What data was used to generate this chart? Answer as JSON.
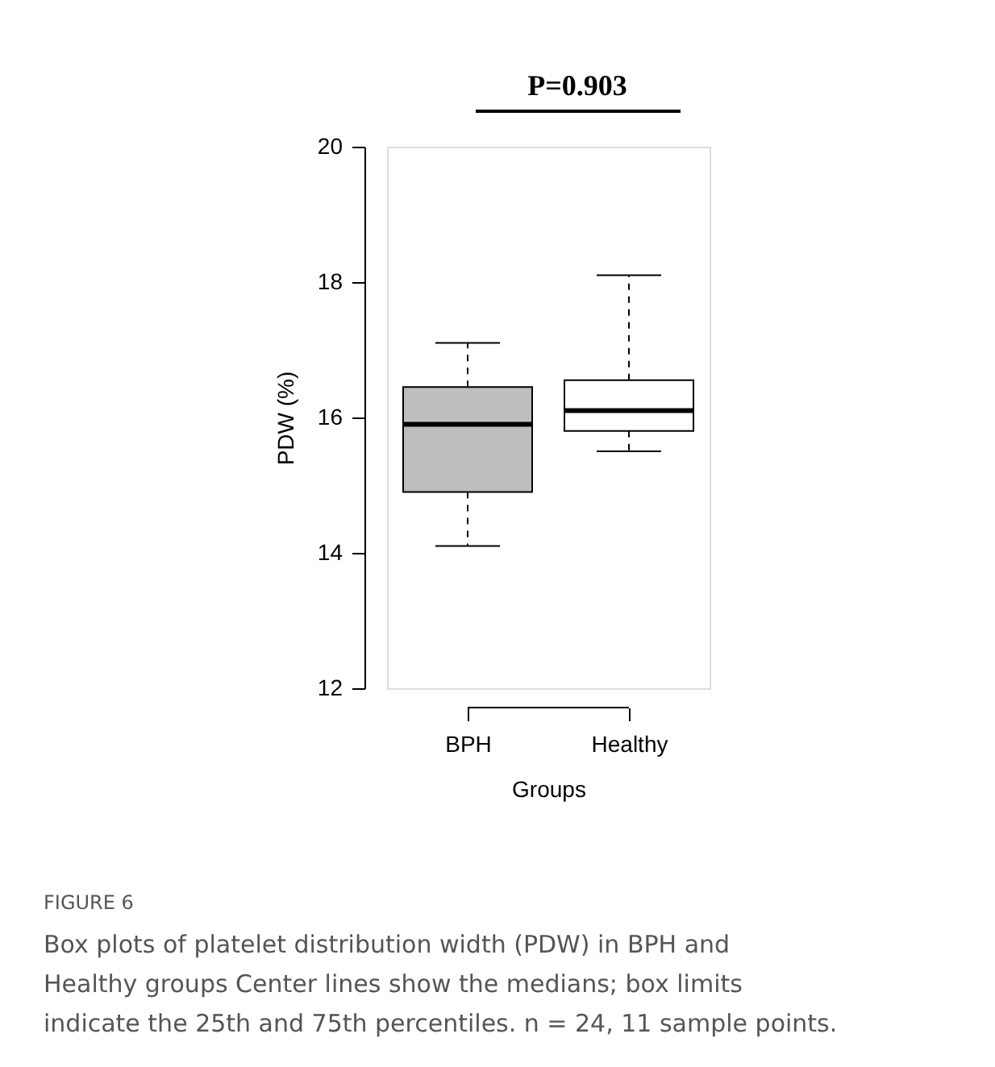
{
  "chart_data": {
    "type": "box",
    "xlabel": "Groups",
    "ylabel": "PDW (%)",
    "categories": [
      "BPH",
      "Healthy"
    ],
    "boxes": [
      {
        "low": 14.1,
        "q1": 14.9,
        "median": 15.9,
        "q3": 16.45,
        "high": 17.1
      },
      {
        "low": 15.5,
        "q1": 15.8,
        "median": 16.1,
        "q3": 16.55,
        "high": 18.1
      }
    ],
    "colors": [
      "#bebebe",
      "#ffffff"
    ],
    "ylim": [
      12,
      20
    ],
    "yticks": [
      12,
      14,
      16,
      18,
      20
    ],
    "grid": false,
    "annotations": [
      "P=0.903",
      "FIGURE 6",
      "Box plots of platelet distribution width (PDW) in BPH and",
      "Healthy groups Center lines show the medians; box limits",
      "indicate the 25th and 75th percentiles. n = 24, 11 sample points."
    ]
  }
}
